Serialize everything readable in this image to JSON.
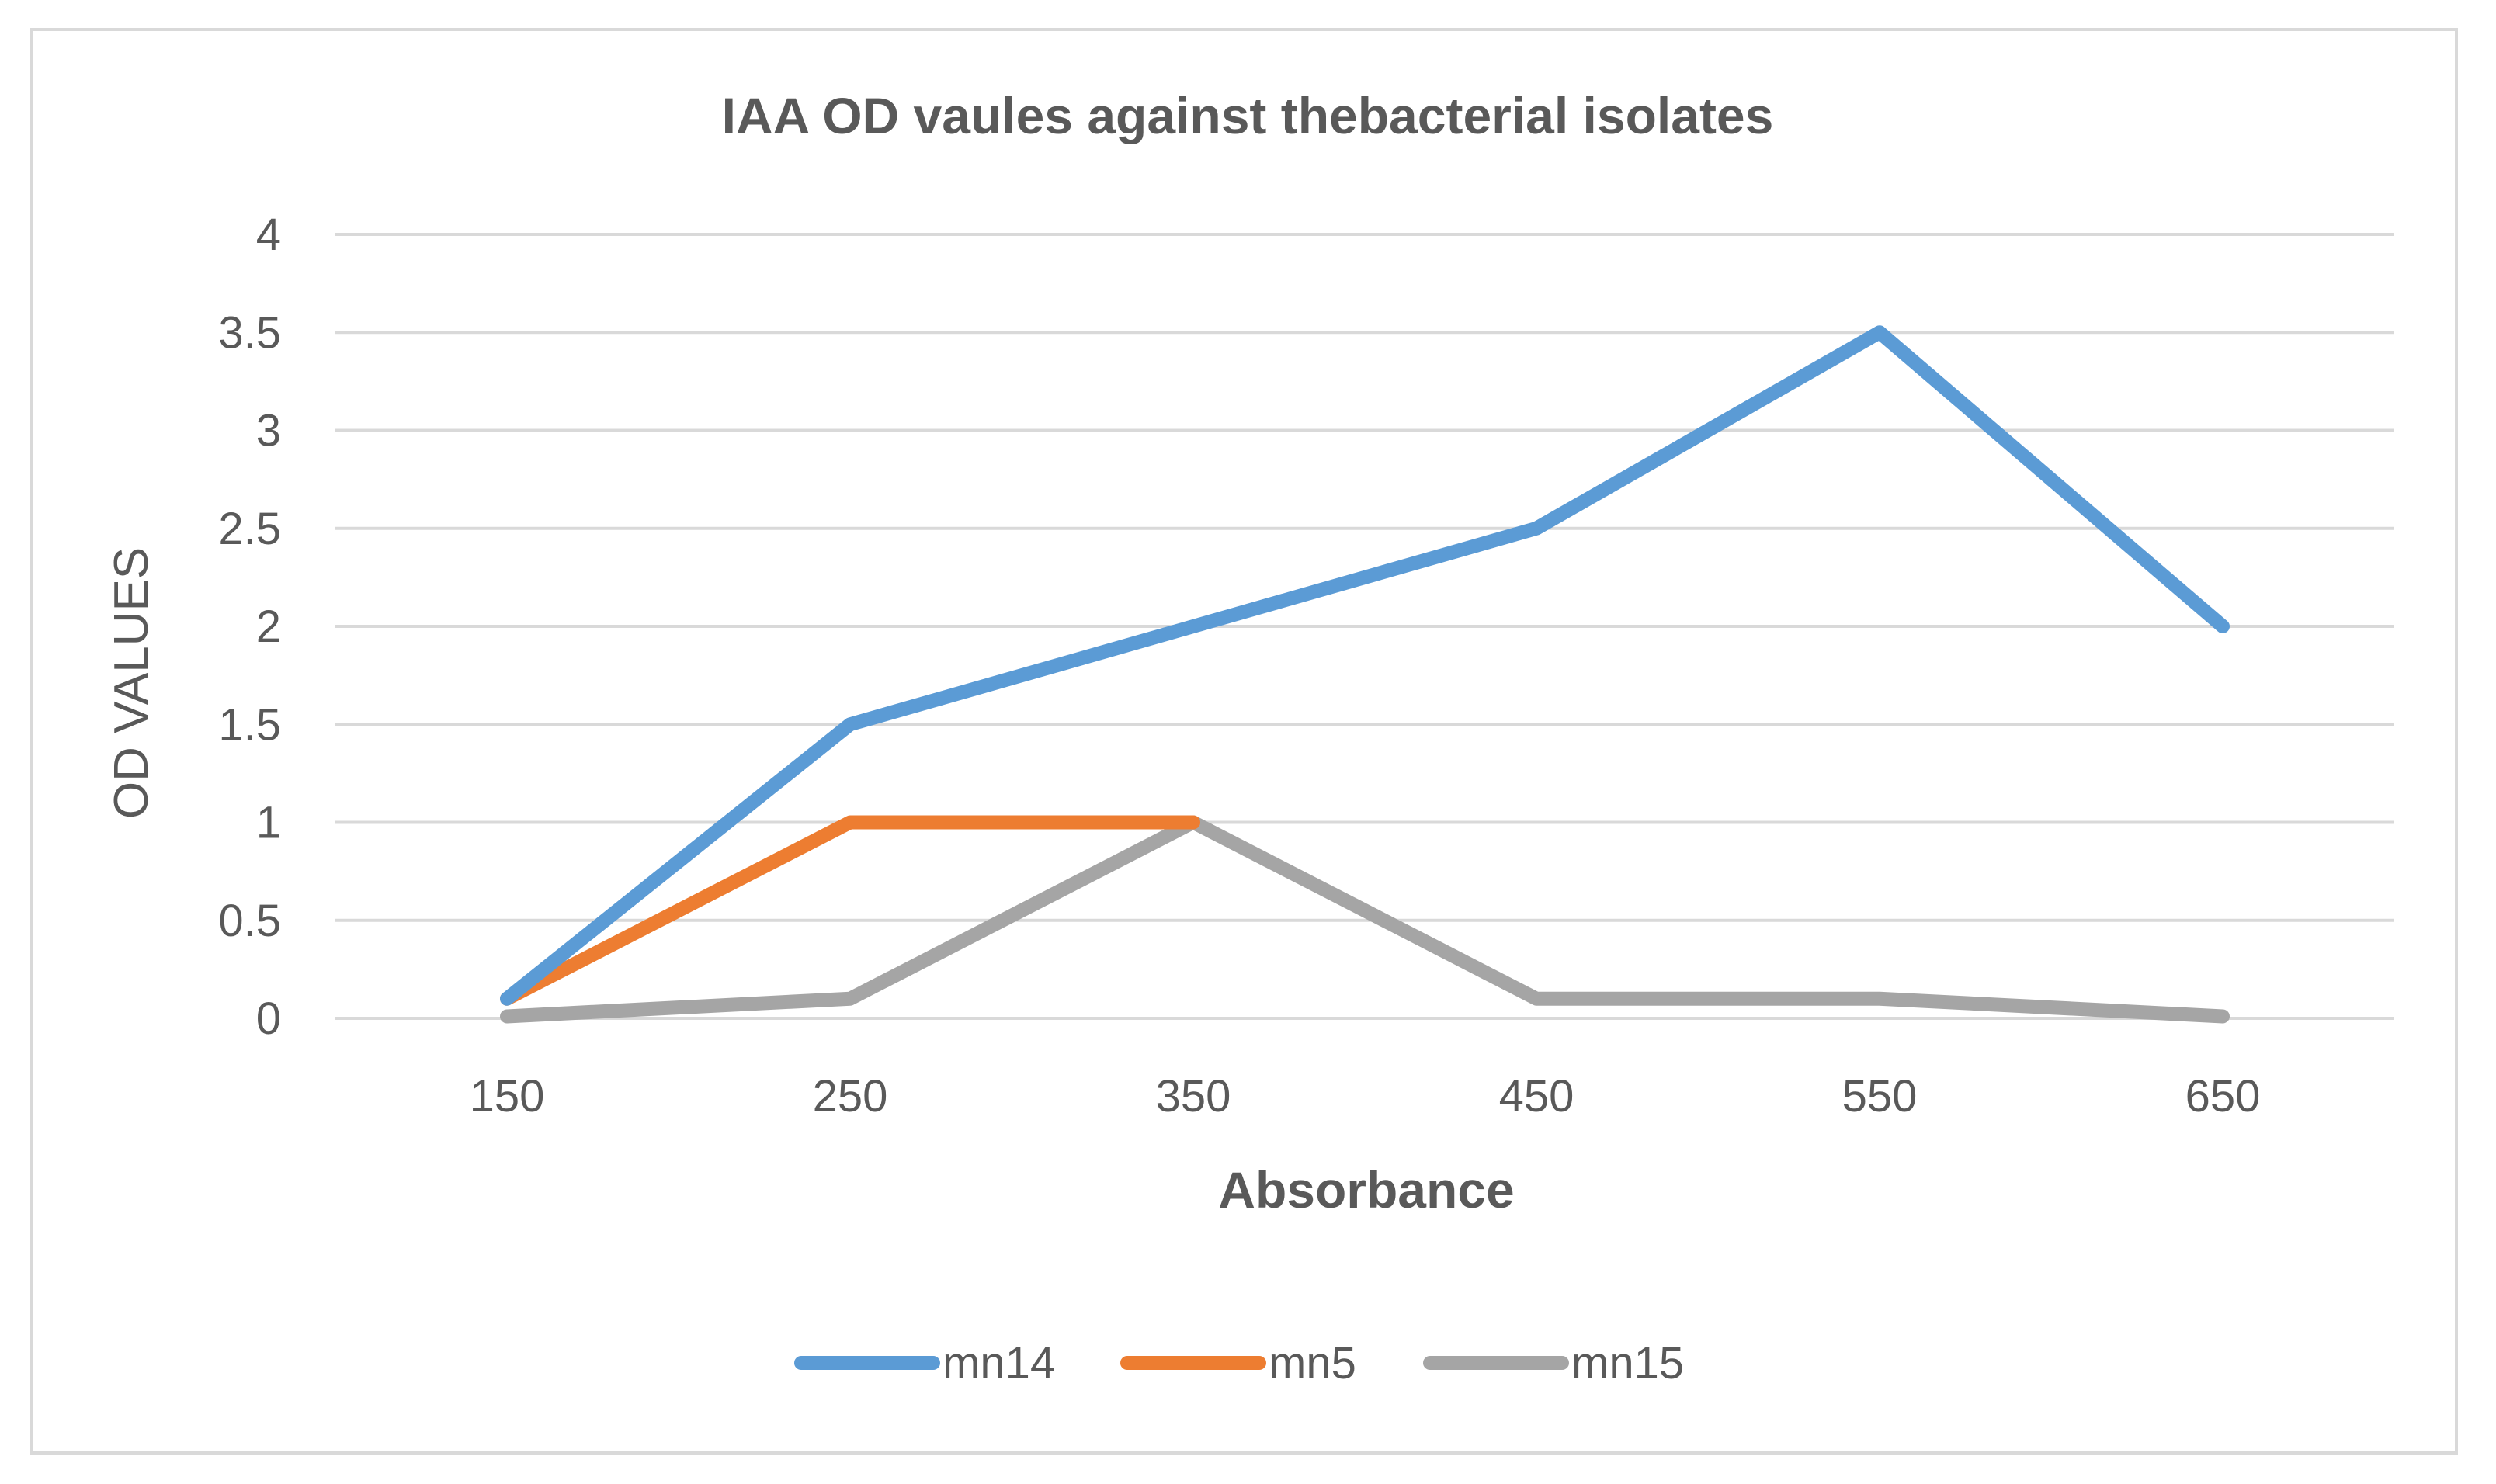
{
  "chart_data": {
    "type": "line",
    "title": "IAA OD vaules against thebacterial isolates",
    "xlabel": "Absorbance",
    "ylabel": "OD VALUES",
    "categories": [
      "150",
      "250",
      "350",
      "450",
      "550",
      "650"
    ],
    "ylim": [
      0,
      4
    ],
    "yticks": [
      "0",
      "0.5",
      "1",
      "1.5",
      "2",
      "2.5",
      "3",
      "3.5",
      "4"
    ],
    "grid": true,
    "legend_position": "bottom",
    "series": [
      {
        "name": "mn14",
        "color": "#5b9bd5",
        "values": [
          0.1,
          1.5,
          2.0,
          2.5,
          3.5,
          2.0
        ]
      },
      {
        "name": "mn5",
        "color": "#ed7d31",
        "values": [
          0.1,
          1.0,
          1.0,
          null,
          null,
          null
        ]
      },
      {
        "name": "mn15",
        "color": "#a5a5a5",
        "values": [
          0.01,
          0.1,
          1.0,
          0.1,
          0.1,
          0.01
        ]
      }
    ]
  }
}
